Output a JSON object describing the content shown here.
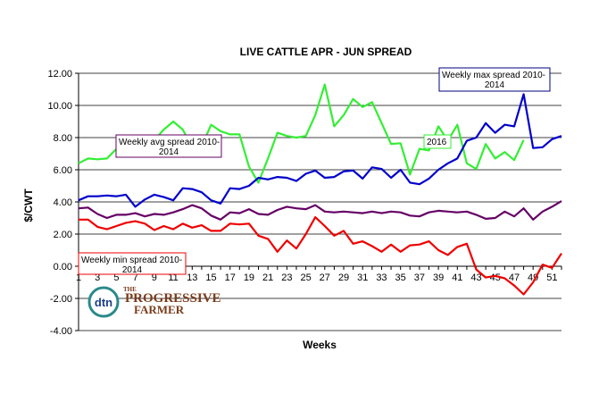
{
  "chart_data": {
    "type": "line",
    "title": "LIVE CATTLE  APR - JUN SPREAD",
    "xlabel": "Weeks",
    "ylabel": "$/CWT",
    "xlim": [
      1,
      52
    ],
    "ylim": [
      -4,
      12
    ],
    "grid": "horizontal",
    "x_tick_labels": [
      "1",
      "3",
      "5",
      "7",
      "9",
      "11",
      "13",
      "15",
      "17",
      "19",
      "21",
      "23",
      "25",
      "27",
      "29",
      "31",
      "33",
      "35",
      "37",
      "39",
      "41",
      "43",
      "45",
      "47",
      "49",
      "51"
    ],
    "y_tick_labels": [
      "-4.00",
      "-2.00",
      "0.00",
      "2.00",
      "4.00",
      "6.00",
      "8.00",
      "10.00",
      "12.00"
    ],
    "y_ticks": [
      -4,
      -2,
      0,
      2,
      4,
      6,
      8,
      10,
      12
    ],
    "series": [
      {
        "name": "Weekly max spread 2010-2014",
        "color": "#0000cc",
        "x": [
          1,
          2,
          3,
          4,
          5,
          6,
          7,
          8,
          9,
          10,
          11,
          12,
          13,
          14,
          15,
          16,
          17,
          18,
          19,
          20,
          21,
          22,
          23,
          24,
          25,
          26,
          27,
          28,
          29,
          30,
          31,
          32,
          33,
          34,
          35,
          36,
          37,
          38,
          39,
          40,
          41,
          42,
          43,
          44,
          45,
          46,
          47,
          48,
          49,
          50,
          51,
          52
        ],
        "values": [
          4.1,
          4.35,
          4.35,
          4.4,
          4.35,
          4.45,
          3.7,
          4.15,
          4.45,
          4.3,
          4.1,
          4.85,
          4.8,
          4.6,
          4.1,
          3.9,
          4.85,
          4.8,
          5.0,
          5.5,
          5.4,
          5.55,
          5.5,
          5.3,
          5.75,
          5.95,
          5.5,
          5.55,
          5.9,
          5.95,
          5.45,
          6.15,
          6.05,
          5.5,
          6.0,
          5.2,
          5.1,
          5.45,
          6.0,
          6.4,
          6.7,
          7.8,
          8.0,
          8.9,
          8.3,
          8.8,
          8.7,
          10.7,
          7.35,
          7.4,
          7.9,
          8.1
        ]
      },
      {
        "name": "Weekly avg spread 2010-2014",
        "color": "#660066",
        "x": [
          1,
          2,
          3,
          4,
          5,
          6,
          7,
          8,
          9,
          10,
          11,
          12,
          13,
          14,
          15,
          16,
          17,
          18,
          19,
          20,
          21,
          22,
          23,
          24,
          25,
          26,
          27,
          28,
          29,
          30,
          31,
          32,
          33,
          34,
          35,
          36,
          37,
          38,
          39,
          40,
          41,
          42,
          43,
          44,
          45,
          46,
          47,
          48,
          49,
          50,
          51,
          52
        ],
        "values": [
          3.6,
          3.65,
          3.25,
          3.0,
          3.2,
          3.2,
          3.3,
          3.1,
          3.25,
          3.2,
          3.35,
          3.55,
          3.8,
          3.6,
          3.15,
          2.9,
          3.35,
          3.3,
          3.55,
          3.25,
          3.2,
          3.5,
          3.7,
          3.6,
          3.55,
          3.8,
          3.4,
          3.35,
          3.4,
          3.35,
          3.3,
          3.4,
          3.3,
          3.4,
          3.35,
          3.15,
          3.1,
          3.35,
          3.45,
          3.4,
          3.35,
          3.4,
          3.2,
          2.95,
          3.0,
          3.4,
          3.1,
          3.6,
          2.9,
          3.4,
          3.7,
          4.05
        ]
      },
      {
        "name": "Weekly min spread 2010-2014",
        "color": "#ee0000",
        "x": [
          1,
          2,
          3,
          4,
          5,
          6,
          7,
          8,
          9,
          10,
          11,
          12,
          13,
          14,
          15,
          16,
          17,
          18,
          19,
          20,
          21,
          22,
          23,
          24,
          25,
          26,
          27,
          28,
          29,
          30,
          31,
          32,
          33,
          34,
          35,
          36,
          37,
          38,
          39,
          40,
          41,
          42,
          43,
          44,
          45,
          46,
          47,
          48,
          49,
          50,
          51,
          52
        ],
        "values": [
          2.9,
          2.9,
          2.45,
          2.3,
          2.5,
          2.7,
          2.8,
          2.65,
          2.25,
          2.5,
          2.3,
          2.65,
          2.4,
          2.55,
          2.2,
          2.2,
          2.65,
          2.6,
          2.65,
          1.9,
          1.7,
          0.9,
          1.6,
          1.1,
          2.0,
          3.05,
          2.5,
          1.9,
          2.2,
          1.4,
          1.55,
          1.25,
          0.9,
          1.35,
          0.9,
          1.3,
          1.35,
          1.55,
          1.0,
          0.7,
          1.2,
          1.4,
          -0.2,
          -0.7,
          -0.6,
          -0.75,
          -1.2,
          -1.75,
          -1.0,
          0.1,
          -0.1,
          0.8
        ]
      },
      {
        "name": "2016",
        "color": "#33ee33",
        "x": [
          1,
          2,
          3,
          4,
          5,
          6,
          7,
          8,
          9,
          10,
          11,
          12,
          13,
          14,
          15,
          16,
          17,
          18,
          19,
          20,
          21,
          22,
          23,
          24,
          25,
          26,
          27,
          28,
          29,
          30,
          31,
          32,
          33,
          34,
          35,
          36,
          37,
          38,
          39,
          40,
          41,
          42,
          43,
          44,
          45,
          46,
          47,
          48
        ],
        "values": [
          6.4,
          6.7,
          6.65,
          6.7,
          7.3,
          7.4,
          7.35,
          7.5,
          7.85,
          8.5,
          9.0,
          8.5,
          7.4,
          7.45,
          8.8,
          8.4,
          8.2,
          8.2,
          6.2,
          5.2,
          6.7,
          8.3,
          8.1,
          8.0,
          8.1,
          9.4,
          11.3,
          8.7,
          9.4,
          10.4,
          9.9,
          10.2,
          8.9,
          7.6,
          7.65,
          5.7,
          7.3,
          7.2,
          8.7,
          7.8,
          8.8,
          6.4,
          6.05,
          7.6,
          6.7,
          7.1,
          6.6,
          7.85
        ]
      }
    ],
    "annotations": [
      {
        "series": "Weekly max spread 2010-2014",
        "text": "Weekly max spread 2010-2014",
        "line1": "Weekly max spread 2010-",
        "line2": "2014",
        "border": "#000080"
      },
      {
        "series": "Weekly avg spread 2010-2014",
        "text": "Weekly avg spread 2010-2014",
        "line1": "Weekly avg spread 2010-",
        "line2": "2014",
        "border": "#660066"
      },
      {
        "series": "Weekly min spread 2010-2014",
        "text": "Weekly min spread 2010-2014",
        "line1": "Weekly min spread 2010-",
        "line2": "2014",
        "border": "#ee0000"
      },
      {
        "series": "2016",
        "text": "2016",
        "line1": "2016",
        "line2": "",
        "border": "#33ee33"
      }
    ]
  },
  "logo": {
    "text": "dtn THE PROGRESSIVE FARMER",
    "mark": "dtn",
    "word_top": "PROGRESSIVE",
    "word_bottom": "FARMER",
    "prefix": "THE",
    "ring_color": "#2a8a8a",
    "word_color": "#7a3b1a"
  }
}
